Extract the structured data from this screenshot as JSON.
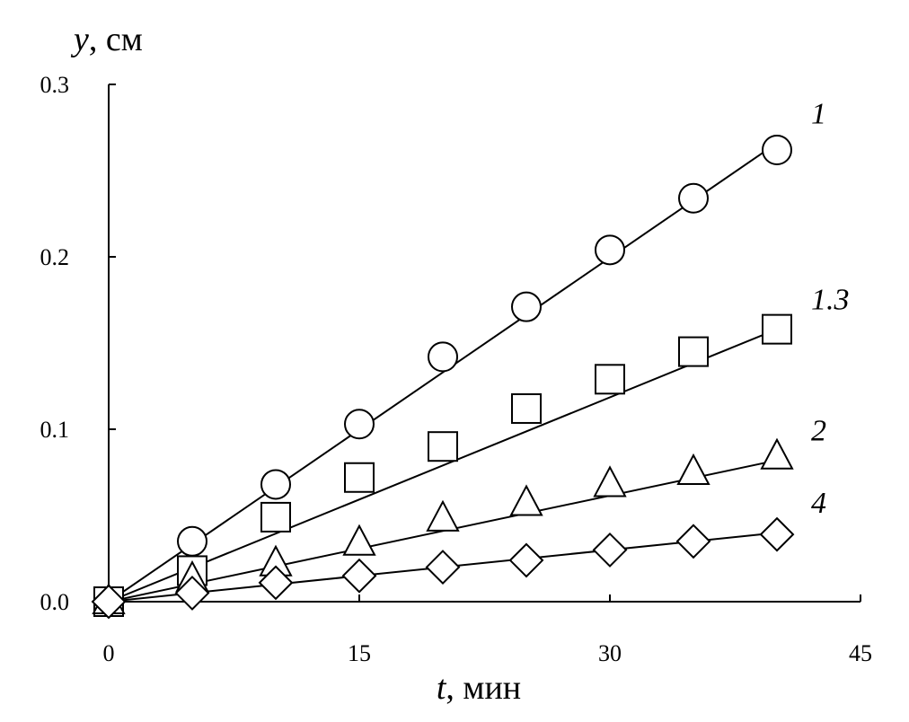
{
  "chart_data": {
    "type": "scatter",
    "title": "",
    "xlabel": {
      "symbol": "t",
      "unit": ", мин"
    },
    "ylabel": {
      "symbol": "y",
      "unit": ", см"
    },
    "xlim": [
      0,
      45
    ],
    "ylim": [
      0,
      0.3
    ],
    "x_ticks": [
      {
        "value": 0,
        "label": "0"
      },
      {
        "value": 15,
        "label": "15"
      },
      {
        "value": 30,
        "label": "30"
      },
      {
        "value": 45,
        "label": "45"
      }
    ],
    "y_ticks": [
      {
        "value": 0,
        "label": "0.0"
      },
      {
        "value": 0.1,
        "label": "0.1"
      },
      {
        "value": 0.2,
        "label": "0.2"
      },
      {
        "value": 0.3,
        "label": "0.3"
      }
    ],
    "grid": false,
    "legend": "none",
    "series": [
      {
        "label": "1",
        "marker": "circle",
        "x": [
          0,
          5,
          10,
          15,
          20,
          25,
          30,
          35,
          40
        ],
        "y": [
          0,
          0.035,
          0.068,
          0.103,
          0.142,
          0.171,
          0.204,
          0.234,
          0.262
        ],
        "fit": {
          "x": [
            0,
            40
          ],
          "y": [
            0,
            0.266
          ]
        }
      },
      {
        "label": "1.3",
        "marker": "square",
        "x": [
          0,
          5,
          10,
          15,
          20,
          25,
          30,
          35,
          40
        ],
        "y": [
          0,
          0.018,
          0.049,
          0.072,
          0.09,
          0.112,
          0.129,
          0.145,
          0.158
        ],
        "fit": {
          "x": [
            0,
            40
          ],
          "y": [
            0,
            0.158
          ]
        }
      },
      {
        "label": "2",
        "marker": "triangle",
        "x": [
          0,
          5,
          10,
          15,
          20,
          25,
          30,
          35,
          40
        ],
        "y": [
          0,
          0.013,
          0.022,
          0.034,
          0.048,
          0.057,
          0.068,
          0.075,
          0.084
        ],
        "fit": {
          "x": [
            0,
            40
          ],
          "y": [
            0,
            0.082
          ]
        }
      },
      {
        "label": "4",
        "marker": "diamond",
        "x": [
          0,
          5,
          10,
          15,
          20,
          25,
          30,
          35,
          40
        ],
        "y": [
          0,
          0.005,
          0.011,
          0.015,
          0.02,
          0.024,
          0.03,
          0.035,
          0.039
        ],
        "fit": {
          "x": [
            0,
            40
          ],
          "y": [
            0,
            0.04
          ]
        }
      }
    ]
  }
}
